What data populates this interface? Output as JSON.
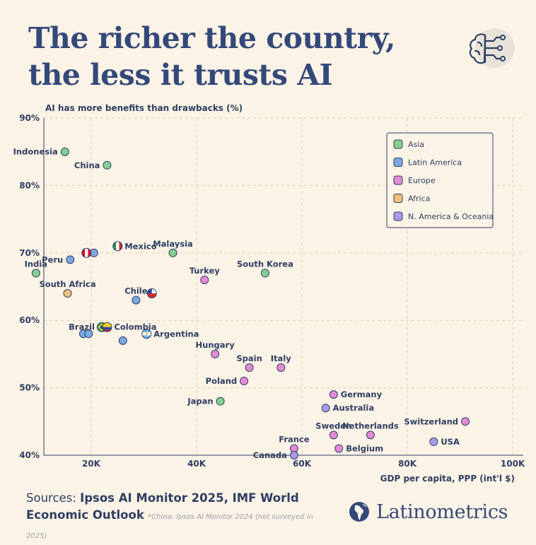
{
  "header": {
    "title_line1": "The richer the country,",
    "title_line2": "the less it trusts AI"
  },
  "icons": {
    "top_right": "brain-circuit-icon",
    "brand": "latin-america-globe-icon"
  },
  "footer": {
    "sources_prefix": "Sources: ",
    "sources_bold": "Ipsos AI Monitor 2025, IMF World Economic Outlook",
    "note": "*China: Ipsos AI Monitor 2024 (not surveyed in 2025)",
    "brand": "Latinometrics"
  },
  "colors": {
    "background": "#fbf3e6",
    "text": "#2e3f63",
    "grid": "#e6d2bd",
    "Asia": "#86cf92",
    "Latin America": "#7aa9e2",
    "Europe": "#e48ad6",
    "Africa": "#f3c07c",
    "N. America & Oceania": "#a79be8"
  },
  "chart_data": {
    "type": "scatter",
    "ylabel": "AI has more benefits than drawbacks (%)",
    "xlabel": "GDP per capita, PPP (int'l $)",
    "xlim": [
      11000,
      102000
    ],
    "ylim": [
      40,
      90
    ],
    "x_ticks": [
      20000,
      40000,
      60000,
      80000,
      100000
    ],
    "x_tick_labels": [
      "20K",
      "40K",
      "60K",
      "80K",
      "100K"
    ],
    "y_ticks": [
      40,
      50,
      60,
      70,
      80,
      90
    ],
    "y_tick_labels": [
      "40%",
      "50%",
      "60%",
      "70%",
      "80%",
      "90%"
    ],
    "grid": true,
    "legend_position": "top-right",
    "series": [
      {
        "name": "Asia",
        "color": "#86cf92",
        "points": [
          {
            "label": "Indonesia",
            "x": 15000,
            "y": 85
          },
          {
            "label": "China",
            "x": 23000,
            "y": 83
          },
          {
            "label": "India",
            "x": 9500,
            "y": 67
          },
          {
            "label": "Malaysia",
            "x": 35500,
            "y": 70
          },
          {
            "label": "South Korea",
            "x": 53000,
            "y": 67
          },
          {
            "label": "Japan",
            "x": 44500,
            "y": 48
          }
        ]
      },
      {
        "name": "Latin America",
        "color": "#7aa9e2",
        "points": [
          {
            "label": "Peru",
            "x": 16000,
            "y": 69
          },
          {
            "label": "",
            "x": 20500,
            "y": 70
          },
          {
            "label": "Mexico",
            "x": 25000,
            "y": 71,
            "flag": "mexico"
          },
          {
            "label": "Chile",
            "x": 28500,
            "y": 63
          },
          {
            "label": "",
            "x": 31500,
            "y": 64,
            "flag": "chile"
          },
          {
            "label": "",
            "x": 18500,
            "y": 58
          },
          {
            "label": "",
            "x": 19500,
            "y": 58
          },
          {
            "label": "Brazil",
            "x": 22000,
            "y": 59,
            "flag": "brazil"
          },
          {
            "label": "Colombia",
            "x": 23000,
            "y": 59,
            "flag": "colombia"
          },
          {
            "label": "",
            "x": 26000,
            "y": 57
          },
          {
            "label": "Argentina",
            "x": 30500,
            "y": 58,
            "flag": "argentina"
          }
        ]
      },
      {
        "name": "Europe",
        "color": "#e48ad6",
        "points": [
          {
            "label": "Turkey",
            "x": 41500,
            "y": 66
          },
          {
            "label": "Hungary",
            "x": 43500,
            "y": 55
          },
          {
            "label": "Spain",
            "x": 50000,
            "y": 53
          },
          {
            "label": "Italy",
            "x": 56000,
            "y": 53
          },
          {
            "label": "Poland",
            "x": 49000,
            "y": 51
          },
          {
            "label": "Germany",
            "x": 66000,
            "y": 49
          },
          {
            "label": "Sweden",
            "x": 66000,
            "y": 43
          },
          {
            "label": "Netherlands",
            "x": 73000,
            "y": 43
          },
          {
            "label": "Switzerland",
            "x": 91000,
            "y": 45
          },
          {
            "label": "France",
            "x": 58500,
            "y": 41
          },
          {
            "label": "Belgium",
            "x": 67000,
            "y": 41
          }
        ]
      },
      {
        "name": "Africa",
        "color": "#f3c07c",
        "points": [
          {
            "label": "South Africa",
            "x": 15500,
            "y": 64
          }
        ]
      },
      {
        "name": "N. America & Oceania",
        "color": "#a79be8",
        "points": [
          {
            "label": "Australia",
            "x": 64500,
            "y": 47
          },
          {
            "label": "USA",
            "x": 85000,
            "y": 42
          },
          {
            "label": "Canada",
            "x": 58500,
            "y": 40
          }
        ]
      }
    ]
  }
}
